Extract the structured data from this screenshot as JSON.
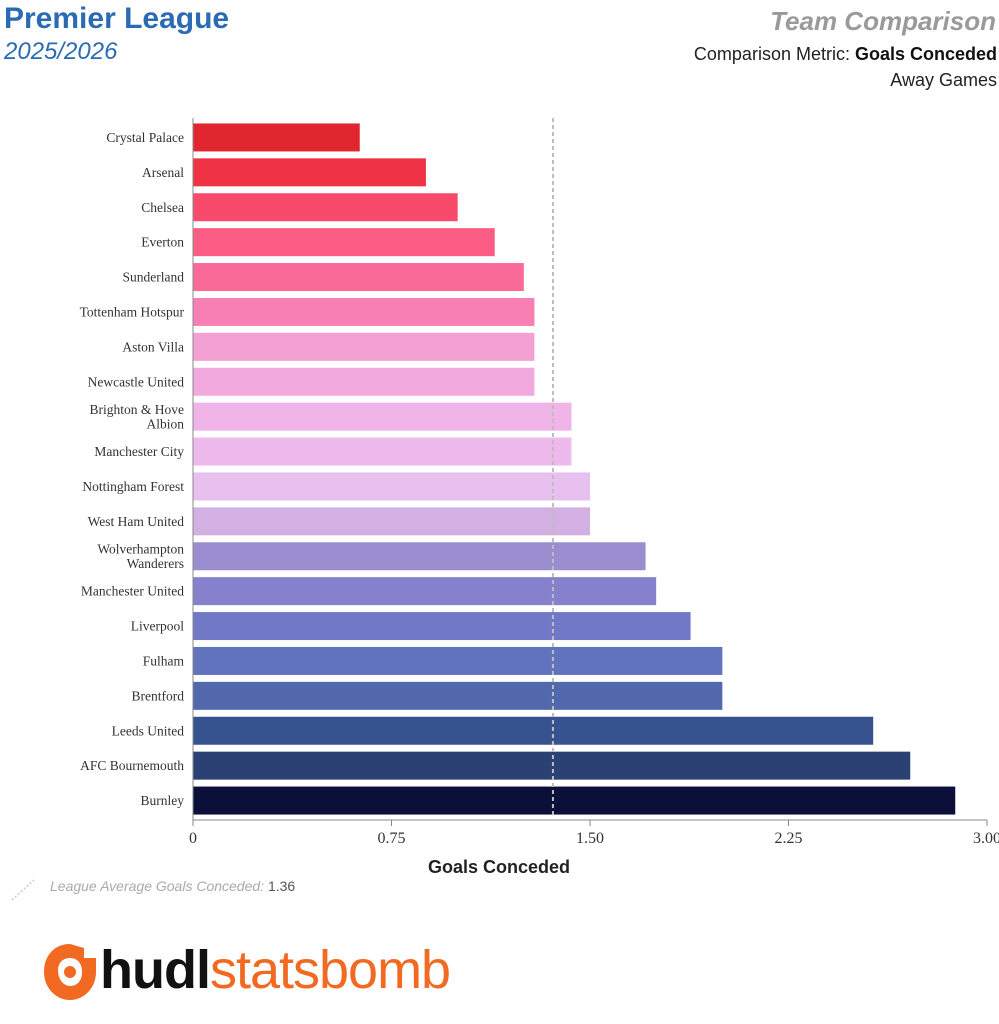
{
  "header": {
    "league": "Premier League",
    "season": "2025/2026",
    "report_title": "Team Comparison",
    "metric_prefix": "Comparison Metric: ",
    "metric_name": "Goals Conceded",
    "venue": "Away Games"
  },
  "average_note": {
    "label": "League Average Goals Conceded:",
    "value": "1.36"
  },
  "logo": {
    "part1": "hudl",
    "part2": "statsbomb",
    "icon": "statsbomb-logo-icon",
    "color": "#f26a21"
  },
  "chart_data": {
    "type": "bar",
    "orientation": "horizontal",
    "xlabel": "Goals Conceded",
    "xlim": [
      0,
      3.0
    ],
    "x_ticks": [
      "0",
      "0.75",
      "1.50",
      "2.25",
      "3.00"
    ],
    "x_tick_values": [
      0,
      0.75,
      1.5,
      2.25,
      3.0
    ],
    "reference_line": {
      "value": 1.36,
      "style": "dashed",
      "color": "#bbbbbb"
    },
    "grid": false,
    "categories": [
      [
        "Crystal Palace"
      ],
      [
        "Arsenal"
      ],
      [
        "Chelsea"
      ],
      [
        "Everton"
      ],
      [
        "Sunderland"
      ],
      [
        "Tottenham Hotspur"
      ],
      [
        "Aston Villa"
      ],
      [
        "Newcastle United"
      ],
      [
        "Brighton & Hove",
        "Albion"
      ],
      [
        "Manchester City"
      ],
      [
        "Nottingham Forest"
      ],
      [
        "West Ham United"
      ],
      [
        "Wolverhampton",
        "Wanderers"
      ],
      [
        "Manchester United"
      ],
      [
        "Liverpool"
      ],
      [
        "Fulham"
      ],
      [
        "Brentford"
      ],
      [
        "Leeds United"
      ],
      [
        "AFC Bournemouth"
      ],
      [
        "Burnley"
      ]
    ],
    "values": [
      0.63,
      0.88,
      1.0,
      1.14,
      1.25,
      1.29,
      1.29,
      1.29,
      1.43,
      1.43,
      1.5,
      1.5,
      1.71,
      1.75,
      1.88,
      2.0,
      2.0,
      2.57,
      2.71,
      2.88
    ],
    "colors": [
      "#e0262e",
      "#ef3244",
      "#f84a6a",
      "#fa5c84",
      "#fa6a98",
      "#f77fb3",
      "#f3a0d5",
      "#f1a9de",
      "#f0b4e8",
      "#eebaee",
      "#e8c0ef",
      "#d3b0e2",
      "#9b8ed0",
      "#8681cc",
      "#7179c7",
      "#6273bd",
      "#5168ad",
      "#36528f",
      "#2b4174",
      "#0c0f3a"
    ]
  }
}
